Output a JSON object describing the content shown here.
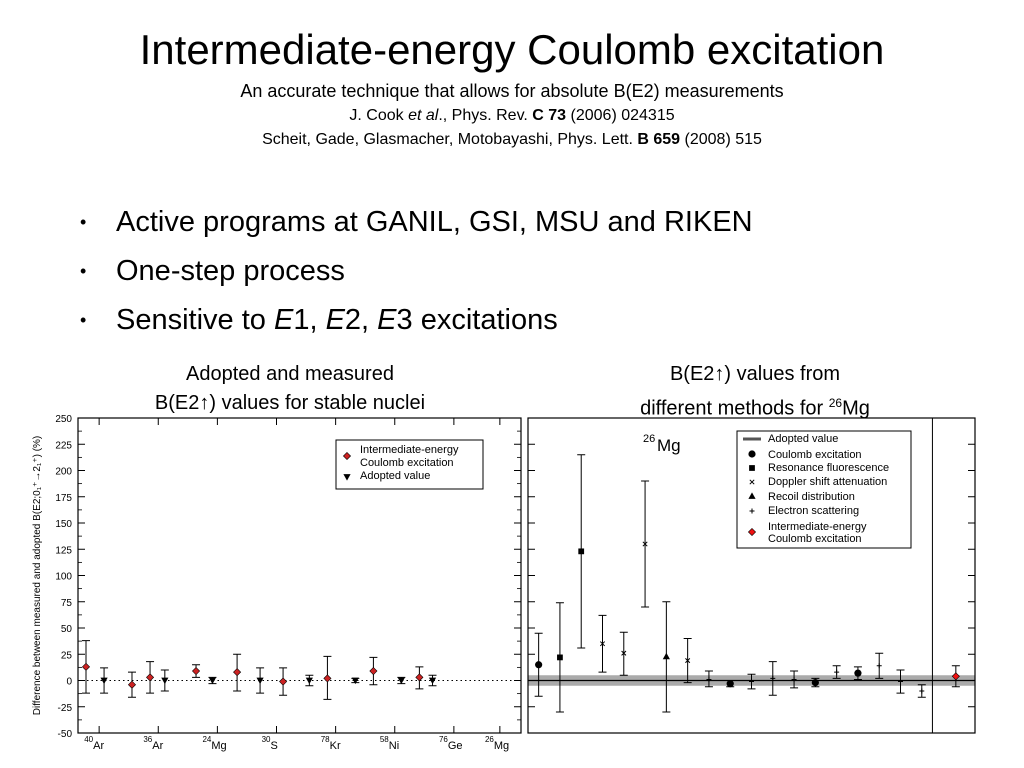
{
  "header": {
    "title": "Intermediate-energy Coulomb excitation",
    "subtitle": "An accurate technique that allows for absolute B(E2) measurements",
    "ref1_a": "J. Cook ",
    "ref1_b": "et al",
    "ref1_c": "., Phys. Rev. ",
    "ref1_d": "C 73",
    "ref1_e": " (2006) 024315",
    "ref2_a": "Scheit, Gade, Glasmacher, Motobayashi, Phys. Lett. ",
    "ref2_b": "B 659",
    "ref2_c": " (2008) 515"
  },
  "bullets": [
    {
      "text": "Active programs at GANIL, GSI, MSU and RIKEN"
    },
    {
      "text": "One-step process"
    },
    {
      "a": "Sensitive to ",
      "b": "E",
      "c": "1, ",
      "d": "E",
      "e": "2, ",
      "f": "E",
      "g": "3 excitations"
    }
  ],
  "left_caption": {
    "line1": "Adopted and measured",
    "line2": "B(E2↑) values for stable nuclei"
  },
  "right_caption": {
    "line1": "B(E2↑) values from",
    "line2a": "different methods for ",
    "line2_sup": "26",
    "line2b": "Mg"
  },
  "chart_data": [
    {
      "type": "scatter",
      "ylabel": "Difference between measured and adopted B(E2;0₁⁺→2₁⁺) (%)",
      "ylim": [
        -50,
        250
      ],
      "yticks": [
        -50,
        -25,
        0,
        25,
        50,
        75,
        100,
        125,
        150,
        175,
        200,
        225,
        250
      ],
      "ytick_labels": [
        "-50",
        "-25",
        "0",
        "25",
        "50",
        "75",
        "100",
        "125",
        "150",
        "175",
        "200",
        "225",
        "250"
      ],
      "xlim": [
        0,
        13
      ],
      "categories": [
        {
          "mass": "40",
          "symbol": "Ar",
          "x": 0.4
        },
        {
          "mass": "36",
          "symbol": "Ar",
          "x": 2.2
        },
        {
          "mass": "24",
          "symbol": "Mg",
          "x": 4.0
        },
        {
          "mass": "30",
          "symbol": "S",
          "x": 5.8
        },
        {
          "mass": "78",
          "symbol": "Kr",
          "x": 7.6
        },
        {
          "mass": "58",
          "symbol": "Ni",
          "x": 9.4
        },
        {
          "mass": "76",
          "symbol": "Ge",
          "x": 11.2
        },
        {
          "mass": "26",
          "symbol": "Mg",
          "x": 12.6
        }
      ],
      "legend": {
        "placement": "top-right",
        "entries": [
          "Intermediate-energy",
          "Coulomb excitation",
          "Adopted value"
        ]
      },
      "series": [
        {
          "name": "Intermediate-energy Coulomb excitation",
          "marker": "diamond",
          "color": "#cc2222",
          "points": [
            {
              "x": 0.0,
              "y": 13,
              "lo": -12,
              "hi": 38
            },
            {
              "x": 1.4,
              "y": -4,
              "lo": -16,
              "hi": 8
            },
            {
              "x": 1.95,
              "y": 3,
              "lo": -12,
              "hi": 18
            },
            {
              "x": 3.35,
              "y": 9,
              "lo": 3,
              "hi": 15
            },
            {
              "x": 4.6,
              "y": 8,
              "lo": -10,
              "hi": 25
            },
            {
              "x": 6.0,
              "y": -1,
              "lo": -14,
              "hi": 12
            },
            {
              "x": 7.35,
              "y": 2,
              "lo": -18,
              "hi": 23
            },
            {
              "x": 8.75,
              "y": 9,
              "lo": -4,
              "hi": 22
            },
            {
              "x": 10.15,
              "y": 3,
              "lo": -8,
              "hi": 13
            }
          ]
        },
        {
          "name": "Adopted value",
          "marker": "triangle-down",
          "color": "#000000",
          "points": [
            {
              "x": 0.55,
              "y": 0,
              "lo": -12,
              "hi": 12
            },
            {
              "x": 2.4,
              "y": 0,
              "lo": -10,
              "hi": 10
            },
            {
              "x": 3.85,
              "y": 0,
              "lo": -3,
              "hi": 3
            },
            {
              "x": 5.3,
              "y": 0,
              "lo": -12,
              "hi": 12
            },
            {
              "x": 6.8,
              "y": 0,
              "lo": -5,
              "hi": 5
            },
            {
              "x": 8.2,
              "y": 0,
              "lo": -2,
              "hi": 2
            },
            {
              "x": 9.6,
              "y": 0,
              "lo": -3,
              "hi": 3
            },
            {
              "x": 10.55,
              "y": 0,
              "lo": -5,
              "hi": 5
            }
          ]
        }
      ]
    },
    {
      "type": "scatter",
      "annotation_mass": "26",
      "annotation_symbol": "Mg",
      "ylim": [
        -50,
        250
      ],
      "xlim": [
        0,
        21
      ],
      "adopted_band": {
        "value": 0,
        "half_width": 5,
        "color": "#aaaaaa"
      },
      "divider_x": 19,
      "legend": {
        "placement": "top-right",
        "entries": [
          "Adopted value",
          "Coulomb excitation",
          "Resonance fluorescence",
          "Doppler shift attenuation",
          "Recoil distribution",
          "Electron scattering",
          "Intermediate-energy",
          "Coulomb excitation"
        ]
      },
      "series": [
        {
          "name": "Coulomb excitation",
          "marker": "circle",
          "color": "#000000",
          "points": [
            {
              "x": 0.5,
              "y": 15,
              "lo": -15,
              "hi": 45
            },
            {
              "x": 9.5,
              "y": -3,
              "lo": -6,
              "hi": 0
            },
            {
              "x": 13.5,
              "y": -2,
              "lo": -6,
              "hi": 2
            },
            {
              "x": 15.5,
              "y": 7,
              "lo": 1,
              "hi": 13
            }
          ]
        },
        {
          "name": "Resonance fluorescence",
          "marker": "square",
          "color": "#000000",
          "points": [
            {
              "x": 1.5,
              "y": 22,
              "lo": -30,
              "hi": 74
            },
            {
              "x": 2.5,
              "y": 123,
              "lo": 31,
              "hi": 215
            }
          ]
        },
        {
          "name": "Doppler shift attenuation",
          "marker": "x",
          "color": "#000000",
          "points": [
            {
              "x": 3.5,
              "y": 35,
              "lo": 8,
              "hi": 62
            },
            {
              "x": 4.5,
              "y": 26,
              "lo": 5,
              "hi": 46
            },
            {
              "x": 5.5,
              "y": 130,
              "lo": 70,
              "hi": 190
            },
            {
              "x": 7.5,
              "y": 19,
              "lo": -2,
              "hi": 40
            }
          ]
        },
        {
          "name": "Recoil distribution",
          "marker": "triangle",
          "color": "#000000",
          "points": [
            {
              "x": 6.5,
              "y": 23,
              "lo": -30,
              "hi": 75
            }
          ]
        },
        {
          "name": "Electron scattering",
          "marker": "plus",
          "color": "#000000",
          "points": [
            {
              "x": 8.5,
              "y": 1,
              "lo": -6,
              "hi": 9
            },
            {
              "x": 10.5,
              "y": -1,
              "lo": -8,
              "hi": 6
            },
            {
              "x": 11.5,
              "y": 2,
              "lo": -14,
              "hi": 18
            },
            {
              "x": 12.5,
              "y": 1,
              "lo": -7,
              "hi": 9
            },
            {
              "x": 14.5,
              "y": 8,
              "lo": 2,
              "hi": 14
            },
            {
              "x": 16.5,
              "y": 14,
              "lo": 2,
              "hi": 26
            },
            {
              "x": 17.5,
              "y": -1,
              "lo": -12,
              "hi": 10
            },
            {
              "x": 18.5,
              "y": -10,
              "lo": -16,
              "hi": -4
            }
          ]
        },
        {
          "name": "Intermediate-energy Coulomb excitation",
          "marker": "diamond",
          "color": "#ee1111",
          "points": [
            {
              "x": 20.1,
              "y": 4,
              "lo": -6,
              "hi": 14
            }
          ]
        }
      ]
    }
  ]
}
